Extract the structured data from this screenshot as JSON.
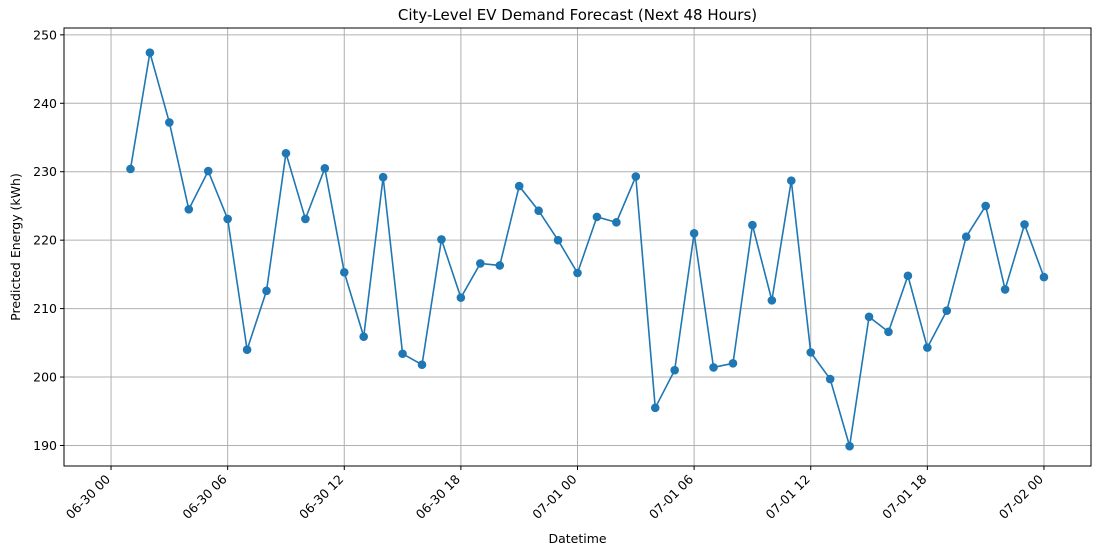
{
  "chart_data": {
    "type": "line",
    "title": "City-Level EV Demand Forecast (Next 48 Hours)",
    "xlabel": "Datetime",
    "ylabel": "Predicted Energy (kWh)",
    "grid": true,
    "line_color": "#1f77b4",
    "x_start": "2024-06-30 01:00",
    "x_step_hours": 1,
    "xlim": [
      "06-29 21:35",
      "07-02 02:25"
    ],
    "ylim": [
      187,
      251
    ],
    "x_ticks": [
      "06-30 00",
      "06-30 06",
      "06-30 12",
      "06-30 18",
      "07-01 00",
      "07-01 06",
      "07-01 12",
      "07-01 18",
      "07-02 00"
    ],
    "y_ticks": [
      190,
      200,
      210,
      220,
      230,
      240,
      250
    ],
    "series": [
      {
        "values": [
          230.4,
          247.4,
          237.2,
          224.5,
          230.1,
          223.1,
          204.0,
          212.6,
          232.7,
          223.1,
          230.5,
          215.3,
          205.9,
          229.2,
          203.4,
          201.8,
          220.1,
          211.6,
          216.6,
          216.3,
          227.9,
          224.3,
          220.0,
          215.2,
          223.4,
          222.6,
          229.3,
          195.5,
          201.0,
          221.0,
          201.4,
          202.0,
          222.2,
          211.2,
          228.7,
          203.6,
          199.7,
          189.9,
          208.8,
          206.6,
          214.8,
          204.3,
          209.7,
          220.5,
          225.0,
          212.8,
          222.3,
          214.6
        ]
      }
    ]
  }
}
